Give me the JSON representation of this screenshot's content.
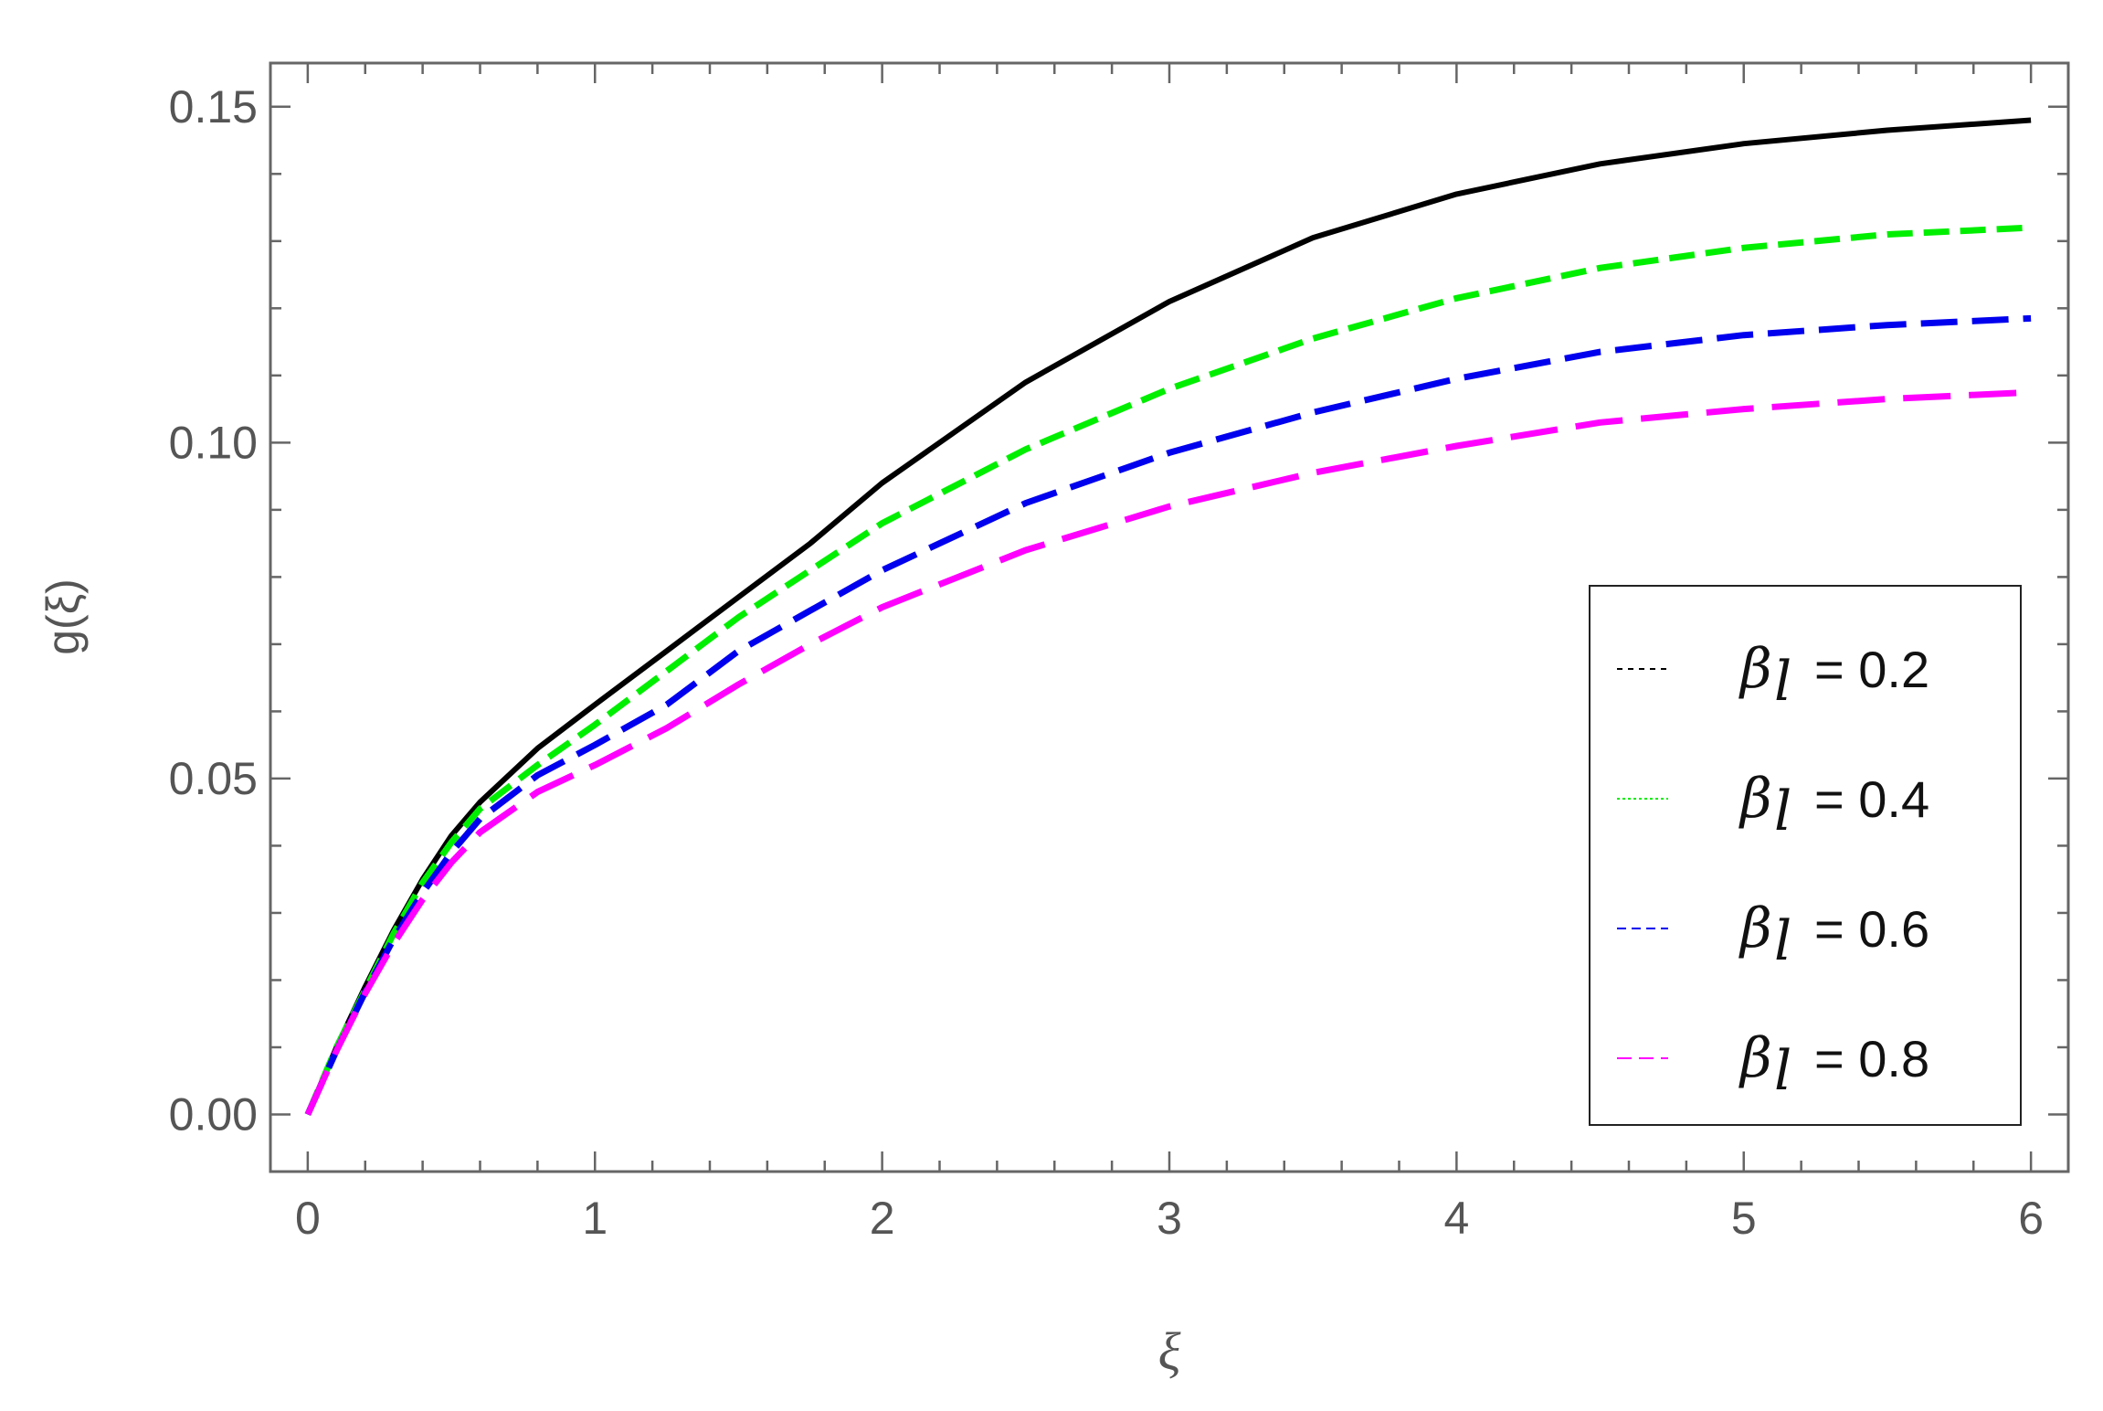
{
  "chart_data": {
    "type": "line",
    "title": "",
    "xlabel": "ξ",
    "ylabel": "g(ξ)",
    "xlim": [
      -0.13,
      6.13
    ],
    "ylim": [
      -0.0085,
      0.1565
    ],
    "xticks": [
      0,
      1,
      2,
      3,
      4,
      5,
      6
    ],
    "xtick_labels": [
      "0",
      "1",
      "2",
      "3",
      "4",
      "5",
      "6"
    ],
    "yticks": [
      0.0,
      0.05,
      0.1,
      0.15
    ],
    "ytick_labels": [
      "0.00",
      "0.05",
      "0.10",
      "0.15"
    ],
    "grid": false,
    "legend_position": "lower-right",
    "x": [
      0,
      0.1,
      0.2,
      0.3,
      0.4,
      0.5,
      0.6,
      0.8,
      1.0,
      1.25,
      1.5,
      1.75,
      2.0,
      2.5,
      3.0,
      3.5,
      4.0,
      4.5,
      5.0,
      5.5,
      6.0
    ],
    "series": [
      {
        "name": "0.2",
        "color": "#000000",
        "style": "solid",
        "values": [
          0,
          0.01,
          0.019,
          0.0275,
          0.035,
          0.0415,
          0.0465,
          0.0545,
          0.061,
          0.069,
          0.077,
          0.085,
          0.094,
          0.109,
          0.121,
          0.1305,
          0.137,
          0.1415,
          0.1445,
          0.1465,
          0.148
        ]
      },
      {
        "name": "0.4",
        "color": "#00ee00",
        "style": "dashed",
        "values": [
          0,
          0.01,
          0.0185,
          0.027,
          0.0345,
          0.0405,
          0.0455,
          0.052,
          0.058,
          0.066,
          0.074,
          0.081,
          0.088,
          0.099,
          0.108,
          0.1155,
          0.1215,
          0.126,
          0.129,
          0.131,
          0.132
        ]
      },
      {
        "name": "0.6",
        "color": "#0000ee",
        "style": "dashed",
        "values": [
          0,
          0.0095,
          0.0182,
          0.0262,
          0.033,
          0.039,
          0.044,
          0.0505,
          0.055,
          0.061,
          0.069,
          0.075,
          0.081,
          0.091,
          0.0985,
          0.1045,
          0.1095,
          0.1135,
          0.116,
          0.1175,
          0.1185
        ]
      },
      {
        "name": "0.8",
        "color": "#ff00ff",
        "style": "dashed",
        "values": [
          0,
          0.0095,
          0.018,
          0.0255,
          0.032,
          0.0375,
          0.042,
          0.048,
          0.052,
          0.0575,
          0.064,
          0.07,
          0.0755,
          0.084,
          0.0905,
          0.0955,
          0.0995,
          0.103,
          0.105,
          0.1065,
          0.1075
        ]
      }
    ],
    "legend": {
      "entries": [
        {
          "symbol": "β",
          "subscript": "l",
          "text": "= 0.2",
          "color": "#000000"
        },
        {
          "symbol": "β",
          "subscript": "l",
          "text": "= 0.4",
          "color": "#00ee00"
        },
        {
          "symbol": "β",
          "subscript": "l",
          "text": "= 0.6",
          "color": "#0000ee"
        },
        {
          "symbol": "β",
          "subscript": "l",
          "text": "= 0.8",
          "color": "#ff00ff"
        }
      ]
    }
  }
}
